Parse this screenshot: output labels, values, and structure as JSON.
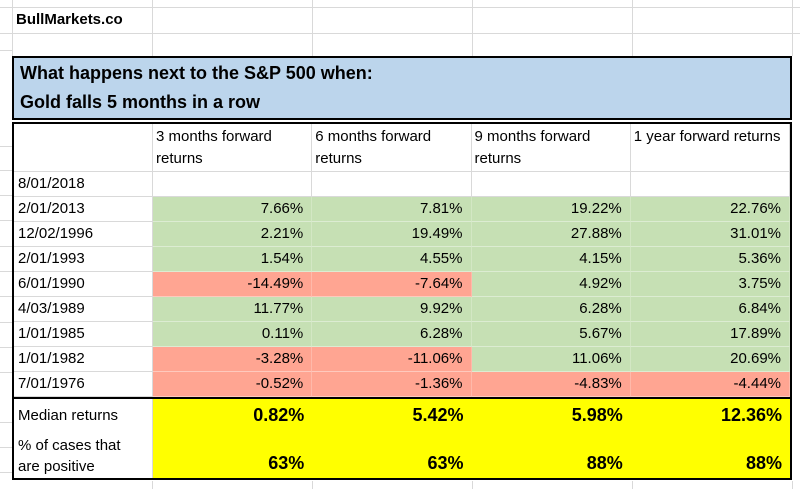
{
  "brand": "BullMarkets.co",
  "title": {
    "line1": "What happens next to the S&P 500 when:",
    "line2": "Gold falls 5 months in a row"
  },
  "table": {
    "column_headers": [
      "3 months forward returns",
      "6 months forward returns",
      "9 months forward returns",
      "1 year forward returns"
    ],
    "rows": [
      {
        "date": "8/01/2018",
        "values": [
          "",
          "",
          "",
          ""
        ]
      },
      {
        "date": "2/01/2013",
        "values": [
          "7.66%",
          "7.81%",
          "19.22%",
          "22.76%"
        ]
      },
      {
        "date": "12/02/1996",
        "values": [
          "2.21%",
          "19.49%",
          "27.88%",
          "31.01%"
        ]
      },
      {
        "date": "2/01/1993",
        "values": [
          "1.54%",
          "4.55%",
          "4.15%",
          "5.36%"
        ]
      },
      {
        "date": "6/01/1990",
        "values": [
          "-14.49%",
          "-7.64%",
          "4.92%",
          "3.75%"
        ]
      },
      {
        "date": "4/03/1989",
        "values": [
          "11.77%",
          "9.92%",
          "6.28%",
          "6.84%"
        ]
      },
      {
        "date": "1/01/1985",
        "values": [
          "0.11%",
          "6.28%",
          "5.67%",
          "17.89%"
        ]
      },
      {
        "date": "1/01/1982",
        "values": [
          "-3.28%",
          "-11.06%",
          "11.06%",
          "20.69%"
        ]
      },
      {
        "date": "7/01/1976",
        "values": [
          "-0.52%",
          "-1.36%",
          "-4.83%",
          "-4.44%"
        ]
      }
    ],
    "summary": {
      "median_label": "Median returns",
      "median_values": [
        "0.82%",
        "5.42%",
        "5.98%",
        "12.36%"
      ],
      "pct_label_line1": "% of cases that",
      "pct_label_line2": "are positive",
      "pct_values": [
        "63%",
        "63%",
        "88%",
        "88%"
      ]
    }
  },
  "colors": {
    "positive_bg": "#c6e0b4",
    "negative_bg": "#ffa592",
    "summary_bg": "#ffff00",
    "title_bg": "#bcd5ec"
  }
}
